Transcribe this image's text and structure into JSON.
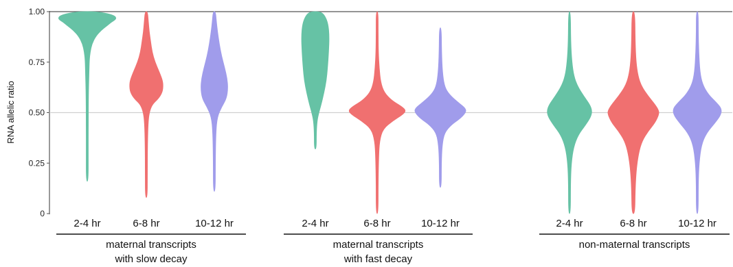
{
  "chart_data": {
    "type": "violin",
    "ylabel": "RNA allelic ratio",
    "ylim": [
      0,
      1
    ],
    "yticks": [
      0,
      0.25,
      0.5,
      0.75,
      1.0
    ],
    "ytick_labels": [
      "0",
      "0.25",
      "0.50",
      "0.75",
      "1.00"
    ],
    "reference_line": 0.5,
    "grid": false,
    "legend": "none",
    "groups": [
      {
        "label": "maternal transcripts\nwith slow decay",
        "label_line1": "maternal transcripts",
        "label_line2": "with slow decay",
        "violins": [
          {
            "category": "2-4 hr",
            "color": "#66C2A5",
            "min": 0.16,
            "max": 1.0,
            "median": 0.96,
            "profile": [
              [
                0.16,
                0.0
              ],
              [
                0.3,
                0.02
              ],
              [
                0.45,
                0.03
              ],
              [
                0.6,
                0.04
              ],
              [
                0.7,
                0.06
              ],
              [
                0.76,
                0.07
              ],
              [
                0.8,
                0.1
              ],
              [
                0.84,
                0.16
              ],
              [
                0.88,
                0.3
              ],
              [
                0.91,
                0.5
              ],
              [
                0.93,
                0.68
              ],
              [
                0.95,
                0.85
              ],
              [
                0.96,
                0.97
              ],
              [
                0.97,
                1.0
              ],
              [
                0.98,
                0.93
              ],
              [
                0.99,
                0.72
              ],
              [
                1.0,
                0.3
              ]
            ]
          },
          {
            "category": "6-8 hr",
            "color": "#F07070",
            "min": 0.08,
            "max": 1.0,
            "median": 0.64,
            "profile": [
              [
                0.08,
                0.0
              ],
              [
                0.2,
                0.02
              ],
              [
                0.35,
                0.04
              ],
              [
                0.45,
                0.06
              ],
              [
                0.5,
                0.1
              ],
              [
                0.54,
                0.2
              ],
              [
                0.57,
                0.42
              ],
              [
                0.6,
                0.55
              ],
              [
                0.63,
                0.58
              ],
              [
                0.66,
                0.56
              ],
              [
                0.7,
                0.45
              ],
              [
                0.75,
                0.3
              ],
              [
                0.8,
                0.2
              ],
              [
                0.85,
                0.15
              ],
              [
                0.9,
                0.1
              ],
              [
                0.95,
                0.07
              ],
              [
                1.0,
                0.04
              ]
            ]
          },
          {
            "category": "10-12 hr",
            "color": "#A09CEB",
            "min": 0.11,
            "max": 1.0,
            "median": 0.62,
            "profile": [
              [
                0.11,
                0.0
              ],
              [
                0.25,
                0.02
              ],
              [
                0.4,
                0.05
              ],
              [
                0.48,
                0.1
              ],
              [
                0.53,
                0.26
              ],
              [
                0.57,
                0.42
              ],
              [
                0.62,
                0.47
              ],
              [
                0.67,
                0.44
              ],
              [
                0.72,
                0.36
              ],
              [
                0.78,
                0.25
              ],
              [
                0.84,
                0.17
              ],
              [
                0.9,
                0.11
              ],
              [
                0.95,
                0.07
              ],
              [
                1.0,
                0.04
              ]
            ]
          }
        ]
      },
      {
        "label": "maternal transcripts\nwith fast decay",
        "label_line1": "maternal transcripts",
        "label_line2": "with fast decay",
        "violins": [
          {
            "category": "2-4 hr",
            "color": "#66C2A5",
            "min": 0.32,
            "max": 1.0,
            "median": 0.85,
            "profile": [
              [
                0.32,
                0.0
              ],
              [
                0.4,
                0.03
              ],
              [
                0.46,
                0.06
              ],
              [
                0.5,
                0.12
              ],
              [
                0.54,
                0.2
              ],
              [
                0.6,
                0.3
              ],
              [
                0.66,
                0.38
              ],
              [
                0.72,
                0.42
              ],
              [
                0.8,
                0.46
              ],
              [
                0.88,
                0.48
              ],
              [
                0.94,
                0.44
              ],
              [
                0.98,
                0.33
              ],
              [
                1.0,
                0.18
              ]
            ]
          },
          {
            "category": "6-8 hr",
            "color": "#F07070",
            "min": 0.0,
            "max": 1.0,
            "median": 0.51,
            "profile": [
              [
                0.0,
                0.02
              ],
              [
                0.15,
                0.03
              ],
              [
                0.28,
                0.05
              ],
              [
                0.36,
                0.08
              ],
              [
                0.42,
                0.2
              ],
              [
                0.46,
                0.55
              ],
              [
                0.49,
                0.88
              ],
              [
                0.51,
                1.0
              ],
              [
                0.53,
                0.85
              ],
              [
                0.56,
                0.5
              ],
              [
                0.6,
                0.24
              ],
              [
                0.65,
                0.12
              ],
              [
                0.72,
                0.07
              ],
              [
                0.8,
                0.04
              ],
              [
                0.9,
                0.03
              ],
              [
                1.0,
                0.02
              ]
            ]
          },
          {
            "category": "10-12 hr",
            "color": "#A09CEB",
            "min": 0.13,
            "max": 0.92,
            "median": 0.51,
            "profile": [
              [
                0.13,
                0.0
              ],
              [
                0.25,
                0.03
              ],
              [
                0.34,
                0.06
              ],
              [
                0.4,
                0.14
              ],
              [
                0.44,
                0.38
              ],
              [
                0.47,
                0.68
              ],
              [
                0.5,
                0.88
              ],
              [
                0.52,
                0.88
              ],
              [
                0.55,
                0.62
              ],
              [
                0.59,
                0.3
              ],
              [
                0.63,
                0.14
              ],
              [
                0.7,
                0.07
              ],
              [
                0.8,
                0.04
              ],
              [
                0.92,
                0.0
              ]
            ]
          }
        ]
      },
      {
        "label": "non-maternal transcripts",
        "label_line1": "non-maternal transcripts",
        "label_line2": "",
        "violins": [
          {
            "category": "2-4 hr",
            "color": "#66C2A5",
            "min": 0.0,
            "max": 1.0,
            "median": 0.51,
            "profile": [
              [
                0.0,
                0.02
              ],
              [
                0.15,
                0.03
              ],
              [
                0.25,
                0.06
              ],
              [
                0.33,
                0.14
              ],
              [
                0.39,
                0.3
              ],
              [
                0.44,
                0.56
              ],
              [
                0.48,
                0.74
              ],
              [
                0.51,
                0.78
              ],
              [
                0.54,
                0.7
              ],
              [
                0.58,
                0.5
              ],
              [
                0.63,
                0.28
              ],
              [
                0.68,
                0.15
              ],
              [
                0.75,
                0.08
              ],
              [
                0.85,
                0.04
              ],
              [
                1.0,
                0.02
              ]
            ]
          },
          {
            "category": "6-8 hr",
            "color": "#F07070",
            "min": 0.0,
            "max": 1.0,
            "median": 0.5,
            "profile": [
              [
                0.0,
                0.05
              ],
              [
                0.12,
                0.06
              ],
              [
                0.22,
                0.1
              ],
              [
                0.3,
                0.18
              ],
              [
                0.36,
                0.3
              ],
              [
                0.41,
                0.52
              ],
              [
                0.45,
                0.75
              ],
              [
                0.49,
                0.88
              ],
              [
                0.51,
                0.88
              ],
              [
                0.54,
                0.75
              ],
              [
                0.58,
                0.52
              ],
              [
                0.63,
                0.28
              ],
              [
                0.68,
                0.16
              ],
              [
                0.75,
                0.09
              ],
              [
                0.85,
                0.06
              ],
              [
                1.0,
                0.05
              ]
            ]
          },
          {
            "category": "10-12 hr",
            "color": "#A09CEB",
            "min": 0.0,
            "max": 1.0,
            "median": 0.51,
            "profile": [
              [
                0.0,
                0.02
              ],
              [
                0.15,
                0.03
              ],
              [
                0.25,
                0.06
              ],
              [
                0.34,
                0.14
              ],
              [
                0.4,
                0.32
              ],
              [
                0.45,
                0.62
              ],
              [
                0.49,
                0.82
              ],
              [
                0.52,
                0.84
              ],
              [
                0.55,
                0.66
              ],
              [
                0.59,
                0.38
              ],
              [
                0.64,
                0.18
              ],
              [
                0.7,
                0.09
              ],
              [
                0.8,
                0.05
              ],
              [
                0.9,
                0.03
              ],
              [
                1.0,
                0.02
              ]
            ]
          }
        ]
      }
    ]
  }
}
